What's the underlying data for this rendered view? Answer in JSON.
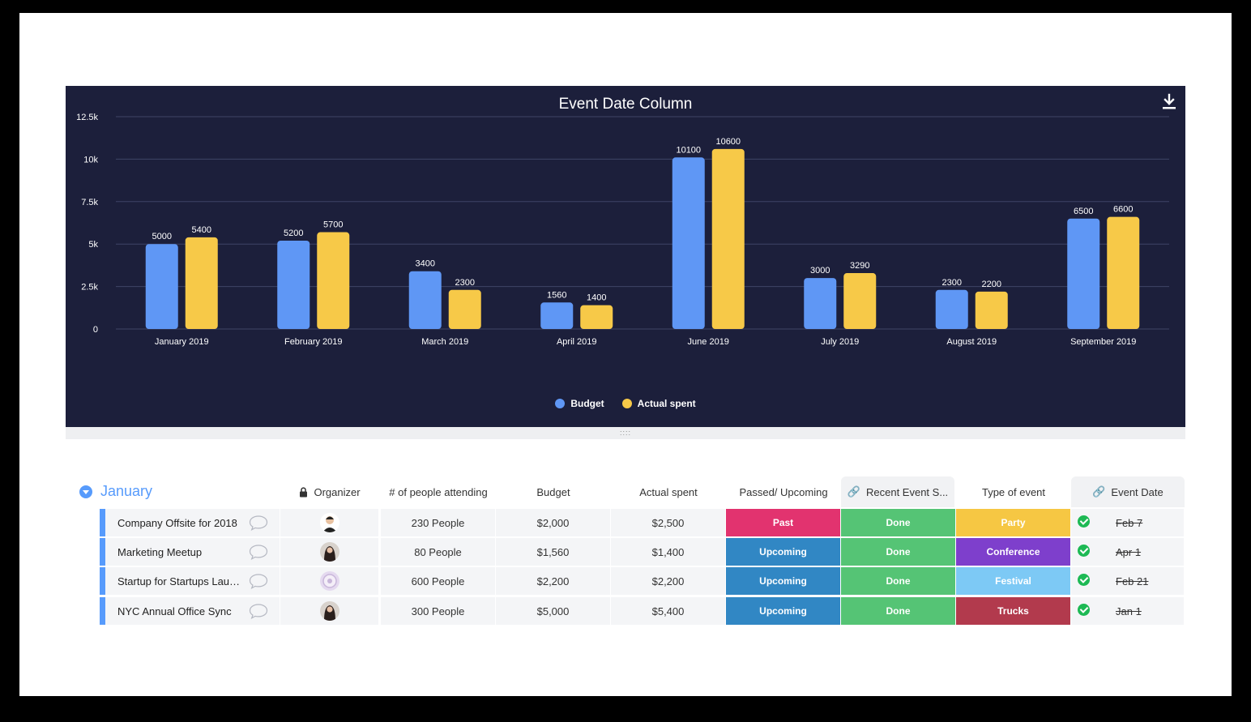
{
  "chart_data": {
    "type": "bar",
    "title": "Event Date Column",
    "categories": [
      "January 2019",
      "February 2019",
      "March 2019",
      "April 2019",
      "June 2019",
      "July 2019",
      "August 2019",
      "September 2019"
    ],
    "series": [
      {
        "name": "Budget",
        "values": [
          5000,
          5200,
          3400,
          1560,
          10100,
          3000,
          2300,
          6500
        ],
        "color": "#5f97f5"
      },
      {
        "name": "Actual spent",
        "values": [
          5400,
          5700,
          2300,
          1400,
          10600,
          3290,
          2200,
          6600
        ],
        "color": "#f7c948"
      }
    ],
    "ylim": [
      0,
      12500
    ],
    "yticks": [
      0,
      2500,
      5000,
      7500,
      10000,
      12500
    ],
    "ytick_labels": [
      "0",
      "2.5k",
      "5k",
      "7.5k",
      "10k",
      "12.5k"
    ],
    "grid": true,
    "legend_position": "bottom-center"
  },
  "chart": {
    "download_icon": "download-icon"
  },
  "board": {
    "group_name": "January",
    "columns": {
      "organizer": "Organizer",
      "people": "# of people attending",
      "budget": "Budget",
      "actual": "Actual spent",
      "passed": "Passed/ Upcoming",
      "recent": "Recent Event S...",
      "type": "Type of event",
      "date": "Event Date"
    },
    "rows": [
      {
        "name": "Company Offsite for 2018",
        "people": "230 People",
        "budget": "$2,000",
        "actual": "$2,500",
        "passed": "Past",
        "passed_color": "#e2336f",
        "recent": "Done",
        "recent_color": "#55c475",
        "type": "Party",
        "type_color": "#f6c743",
        "date": "Feb 7",
        "avatar": "person-1"
      },
      {
        "name": "Marketing Meetup",
        "people": "80 People",
        "budget": "$1,560",
        "actual": "$1,400",
        "passed": "Upcoming",
        "passed_color": "#3187c4",
        "recent": "Done",
        "recent_color": "#55c475",
        "type": "Conference",
        "type_color": "#7e3fcc",
        "date": "Apr 1",
        "avatar": "person-2"
      },
      {
        "name": "Startup for Startups Launch",
        "people": "600 People",
        "budget": "$2,200",
        "actual": "$2,200",
        "passed": "Upcoming",
        "passed_color": "#3187c4",
        "recent": "Done",
        "recent_color": "#55c475",
        "type": "Festival",
        "type_color": "#7dc9f5",
        "date": "Feb 21",
        "avatar": "person-3"
      },
      {
        "name": "NYC Annual Office Sync",
        "people": "300 People",
        "budget": "$5,000",
        "actual": "$5,400",
        "passed": "Upcoming",
        "passed_color": "#3187c4",
        "recent": "Done",
        "recent_color": "#55c475",
        "type": "Trucks",
        "type_color": "#b23a4d",
        "date": "Jan 1",
        "avatar": "person-2"
      }
    ]
  }
}
